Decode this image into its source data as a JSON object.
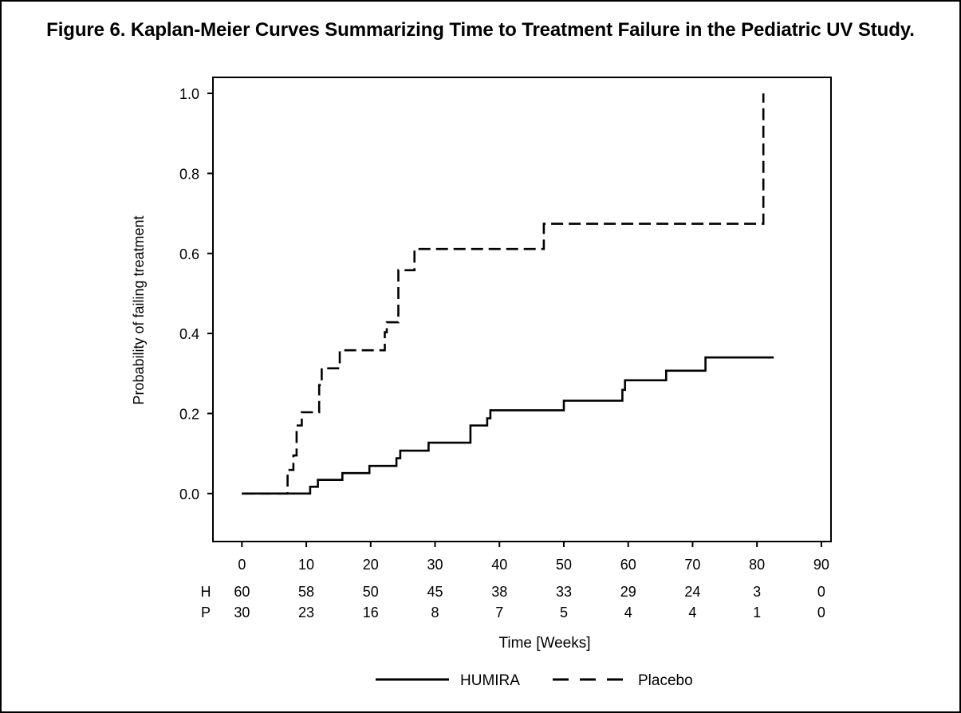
{
  "figure": {
    "title": "Figure 6. Kaplan-Meier Curves Summarizing Time to Treatment Failure in the Pediatric UV Study."
  },
  "chart_data": {
    "type": "line",
    "title": "Figure 6. Kaplan-Meier Curves Summarizing Time to Treatment Failure in the Pediatric UV Study.",
    "xlabel": "Time [Weeks]",
    "ylabel": "Probability of failing treatment",
    "xlim": [
      -4.5,
      91.5
    ],
    "ylim": [
      -0.12,
      1.04
    ],
    "x_ticks": [
      "0",
      "10",
      "20",
      "30",
      "40",
      "50",
      "60",
      "70",
      "80",
      "90"
    ],
    "x_tick_values": [
      0,
      10,
      20,
      30,
      40,
      50,
      60,
      70,
      80,
      90
    ],
    "y_ticks": [
      "0.0",
      "0.2",
      "0.4",
      "0.6",
      "0.8",
      "1.0"
    ],
    "y_tick_values": [
      0.0,
      0.2,
      0.4,
      0.6,
      0.8,
      1.0
    ],
    "grid": false,
    "legend_position": "bottom-center",
    "step": true,
    "series": [
      {
        "name": "HUMIRA",
        "style": "solid",
        "color": "#000000",
        "points": [
          [
            0,
            0.0
          ],
          [
            10.6,
            0.0
          ],
          [
            10.6,
            0.017
          ],
          [
            11.8,
            0.017
          ],
          [
            11.8,
            0.034
          ],
          [
            15.6,
            0.034
          ],
          [
            15.6,
            0.051
          ],
          [
            19.8,
            0.051
          ],
          [
            19.8,
            0.069
          ],
          [
            24.0,
            0.069
          ],
          [
            24.0,
            0.088
          ],
          [
            24.6,
            0.088
          ],
          [
            24.6,
            0.107
          ],
          [
            29.0,
            0.107
          ],
          [
            29.0,
            0.127
          ],
          [
            35.5,
            0.127
          ],
          [
            35.5,
            0.17
          ],
          [
            38.1,
            0.17
          ],
          [
            38.1,
            0.188
          ],
          [
            38.6,
            0.188
          ],
          [
            38.6,
            0.208
          ],
          [
            50.0,
            0.208
          ],
          [
            50.0,
            0.232
          ],
          [
            59.1,
            0.232
          ],
          [
            59.1,
            0.259
          ],
          [
            59.5,
            0.259
          ],
          [
            59.5,
            0.283
          ],
          [
            65.9,
            0.283
          ],
          [
            65.9,
            0.307
          ],
          [
            72.0,
            0.307
          ],
          [
            72.0,
            0.34
          ],
          [
            82.6,
            0.34
          ]
        ]
      },
      {
        "name": "Placebo",
        "style": "dashed",
        "color": "#000000",
        "points": [
          [
            0,
            0.0
          ],
          [
            7.1,
            0.0
          ],
          [
            7.1,
            0.059
          ],
          [
            8.0,
            0.059
          ],
          [
            8.0,
            0.095
          ],
          [
            8.5,
            0.095
          ],
          [
            8.5,
            0.17
          ],
          [
            9.3,
            0.17
          ],
          [
            9.3,
            0.203
          ],
          [
            12.0,
            0.203
          ],
          [
            12.0,
            0.271
          ],
          [
            12.4,
            0.271
          ],
          [
            12.4,
            0.313
          ],
          [
            15.2,
            0.313
          ],
          [
            15.2,
            0.358
          ],
          [
            22.2,
            0.358
          ],
          [
            22.2,
            0.403
          ],
          [
            22.5,
            0.403
          ],
          [
            22.5,
            0.428
          ],
          [
            24.3,
            0.428
          ],
          [
            24.3,
            0.558
          ],
          [
            26.8,
            0.558
          ],
          [
            26.8,
            0.611
          ],
          [
            46.9,
            0.611
          ],
          [
            46.9,
            0.674
          ],
          [
            81.0,
            0.674
          ],
          [
            81.0,
            1.0
          ]
        ]
      }
    ],
    "at_risk": {
      "rows": [
        {
          "label": "H",
          "values": [
            "60",
            "58",
            "50",
            "45",
            "38",
            "33",
            "29",
            "24",
            "3",
            "0"
          ]
        },
        {
          "label": "P",
          "values": [
            "30",
            "23",
            "16",
            "8",
            "7",
            "5",
            "4",
            "4",
            "1",
            "0"
          ]
        }
      ]
    },
    "legend": [
      "HUMIRA",
      "Placebo"
    ]
  }
}
